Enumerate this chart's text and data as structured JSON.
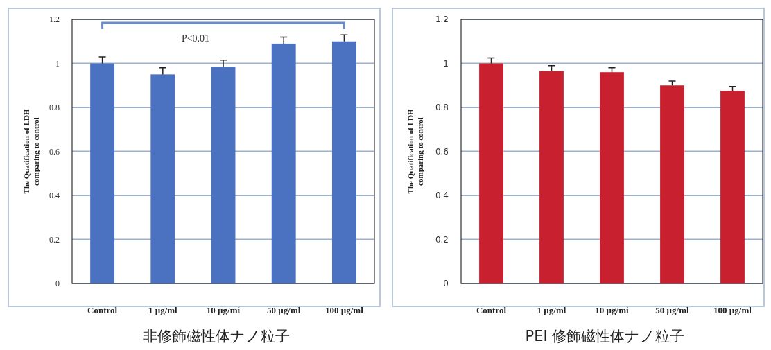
{
  "chart_data": [
    {
      "type": "bar",
      "categories": [
        "Control",
        "1 µg/ml",
        "10 µg/mi",
        "50 µg/ml",
        "100 µg/ml"
      ],
      "series": [
        {
          "color": "#4a72c0",
          "values": [
            1.0,
            0.95,
            0.985,
            1.09,
            1.1
          ],
          "errors": [
            0.03,
            0.03,
            0.03,
            0.03,
            0.03
          ]
        }
      ],
      "ylim": [
        0,
        1.2
      ],
      "yticks": [
        0,
        0.2,
        0.4,
        0.6,
        0.8,
        1,
        1.2
      ],
      "grid": "y",
      "ylabel": "The Quatification of LDH\ncomparing to control",
      "xlabel": "非修飾磁性体ナノ粒子",
      "annotations": [
        "P<0.01"
      ]
    },
    {
      "type": "bar",
      "categories": [
        "Control",
        "1 µg/ml",
        "10 µg/mi",
        "50 µg/ml",
        "100 µg/ml"
      ],
      "series": [
        {
          "color": "#c8202e",
          "values": [
            1.0,
            0.965,
            0.96,
            0.9,
            0.875
          ],
          "errors": [
            0.025,
            0.025,
            0.02,
            0.02,
            0.02
          ]
        }
      ],
      "ylim": [
        0,
        1.2
      ],
      "yticks": [
        0,
        0.2,
        0.4,
        0.6,
        0.8,
        1,
        1.2
      ],
      "grid": "y",
      "ylabel": "The Quatification of LDH\ncomparing to control",
      "xlabel": "PEI 修飾磁性体ナノ粒子"
    }
  ]
}
